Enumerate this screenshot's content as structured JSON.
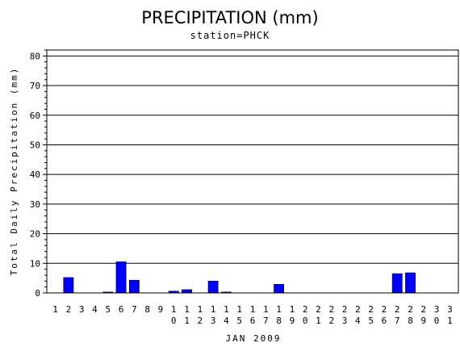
{
  "chart_data": {
    "type": "bar",
    "title": "PRECIPITATION (mm)",
    "subtitle": "station=PHCK",
    "xlabel": "JAN 2009",
    "ylabel": "Total Daily Precipitation (mm)",
    "ylim": [
      0,
      82
    ],
    "yticks": [
      0,
      10,
      20,
      30,
      40,
      50,
      60,
      70,
      80
    ],
    "grid": true,
    "bar_color": "#0000ff",
    "categories": [
      "1",
      "2",
      "3",
      "4",
      "5",
      "6",
      "7",
      "8",
      "9",
      "10",
      "11",
      "12",
      "13",
      "14",
      "15",
      "16",
      "17",
      "18",
      "19",
      "20",
      "21",
      "22",
      "23",
      "24",
      "25",
      "26",
      "27",
      "28",
      "29",
      "30",
      "31"
    ],
    "values": [
      0,
      5.2,
      0,
      0,
      0.3,
      10.5,
      4.3,
      0,
      0,
      0.6,
      1.1,
      0,
      4.0,
      0.3,
      0,
      0,
      0,
      2.9,
      0,
      0,
      0,
      0,
      0,
      0,
      0,
      0,
      6.5,
      6.8,
      0,
      0,
      0
    ]
  }
}
